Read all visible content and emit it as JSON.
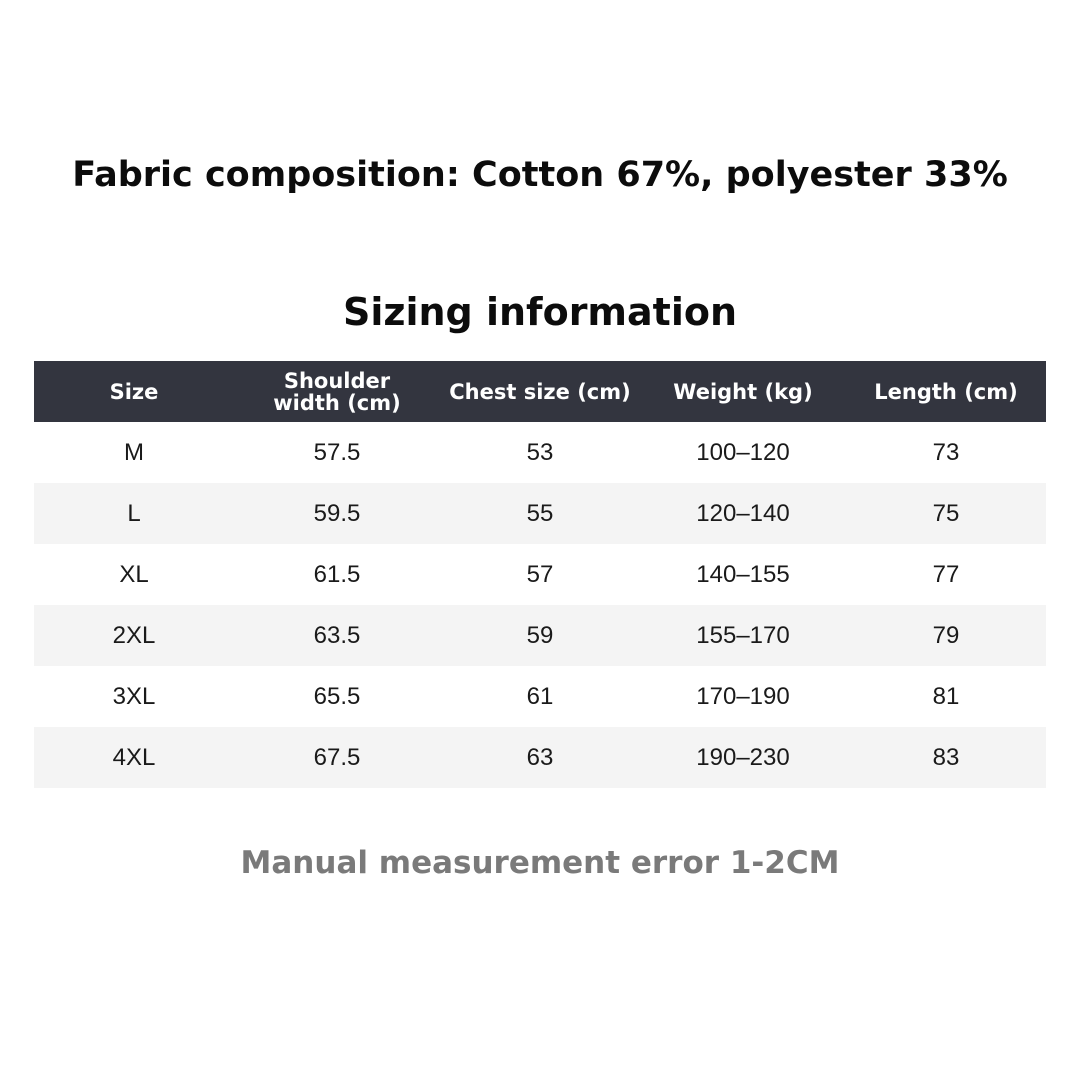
{
  "fabric_composition": "Fabric composition: Cotton 67%, polyester 33%",
  "sizing_title": "Sizing information",
  "table": {
    "headers": [
      "Size",
      "Shoulder width (cm)",
      "Chest size (cm)",
      "Weight (kg)",
      "Length (cm)"
    ],
    "rows": [
      [
        "M",
        "57.5",
        "53",
        "100–120",
        "73"
      ],
      [
        "L",
        "59.5",
        "55",
        "120–140",
        "75"
      ],
      [
        "XL",
        "61.5",
        "57",
        "140–155",
        "77"
      ],
      [
        "2XL",
        "63.5",
        "59",
        "155–170",
        "79"
      ],
      [
        "3XL",
        "65.5",
        "61",
        "170–190",
        "81"
      ],
      [
        "4XL",
        "67.5",
        "63",
        "190–230",
        "83"
      ]
    ]
  },
  "note": "Manual measurement error 1-2CM",
  "colors": {
    "header_bg": "#33353f",
    "alt_row_bg": "#f4f4f4",
    "note_text": "#7a7a7a"
  }
}
